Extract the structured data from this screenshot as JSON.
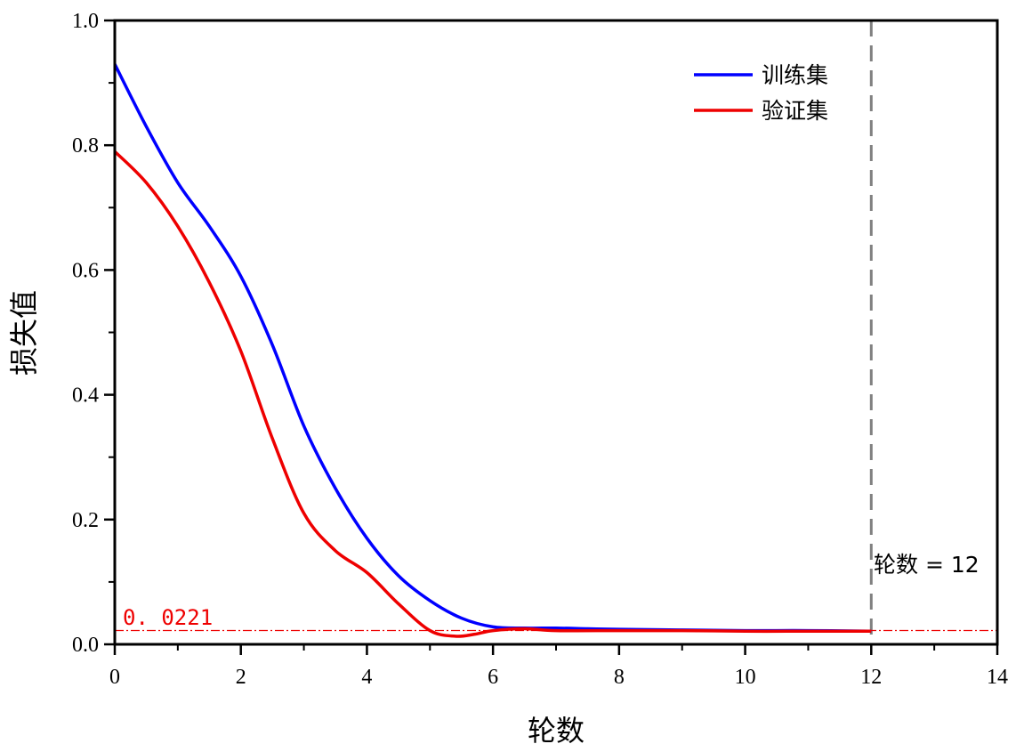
{
  "chart_data": {
    "type": "line",
    "title": "",
    "xlabel": "轮数",
    "ylabel": "损失值",
    "xlim": [
      0,
      14
    ],
    "ylim": [
      0,
      1.0
    ],
    "xticks": [
      0,
      2,
      4,
      6,
      8,
      10,
      12,
      14
    ],
    "xtick_labels": [
      "0",
      "2",
      "4",
      "6",
      "8",
      "10",
      "12",
      "14"
    ],
    "yticks": [
      0.0,
      0.2,
      0.4,
      0.6,
      0.8,
      1.0
    ],
    "ytick_labels": [
      "0.0",
      "0.2",
      "0.4",
      "0.6",
      "0.8",
      "1.0"
    ],
    "grid": false,
    "legend_position": "top-right",
    "series": [
      {
        "name": "训练集",
        "color": "#0000ff",
        "x": [
          0,
          0.5,
          1,
          1.5,
          2,
          2.5,
          3,
          3.5,
          4,
          4.5,
          5,
          5.5,
          6,
          6.5,
          7,
          7.5,
          8,
          9,
          10,
          11,
          12
        ],
        "values": [
          0.93,
          0.83,
          0.74,
          0.67,
          0.59,
          0.48,
          0.35,
          0.25,
          0.17,
          0.11,
          0.07,
          0.042,
          0.028,
          0.026,
          0.026,
          0.025,
          0.024,
          0.023,
          0.022,
          0.022,
          0.021
        ]
      },
      {
        "name": "验证集",
        "color": "#ee0000",
        "x": [
          0,
          0.5,
          1,
          1.5,
          2,
          2.5,
          3,
          3.5,
          4,
          4.5,
          5,
          5.4,
          5.7,
          6,
          6.5,
          7,
          8,
          9,
          10,
          11,
          12
        ],
        "values": [
          0.79,
          0.74,
          0.67,
          0.58,
          0.47,
          0.33,
          0.21,
          0.15,
          0.115,
          0.065,
          0.022,
          0.013,
          0.016,
          0.022,
          0.025,
          0.022,
          0.022,
          0.022,
          0.021,
          0.021,
          0.021
        ]
      }
    ],
    "annotations": [
      {
        "type": "vline",
        "x": 12,
        "color": "#808080",
        "label": "轮数 = 12"
      },
      {
        "type": "hline",
        "y": 0.0221,
        "color": "#ee0000",
        "label": "0. 0221"
      }
    ]
  }
}
